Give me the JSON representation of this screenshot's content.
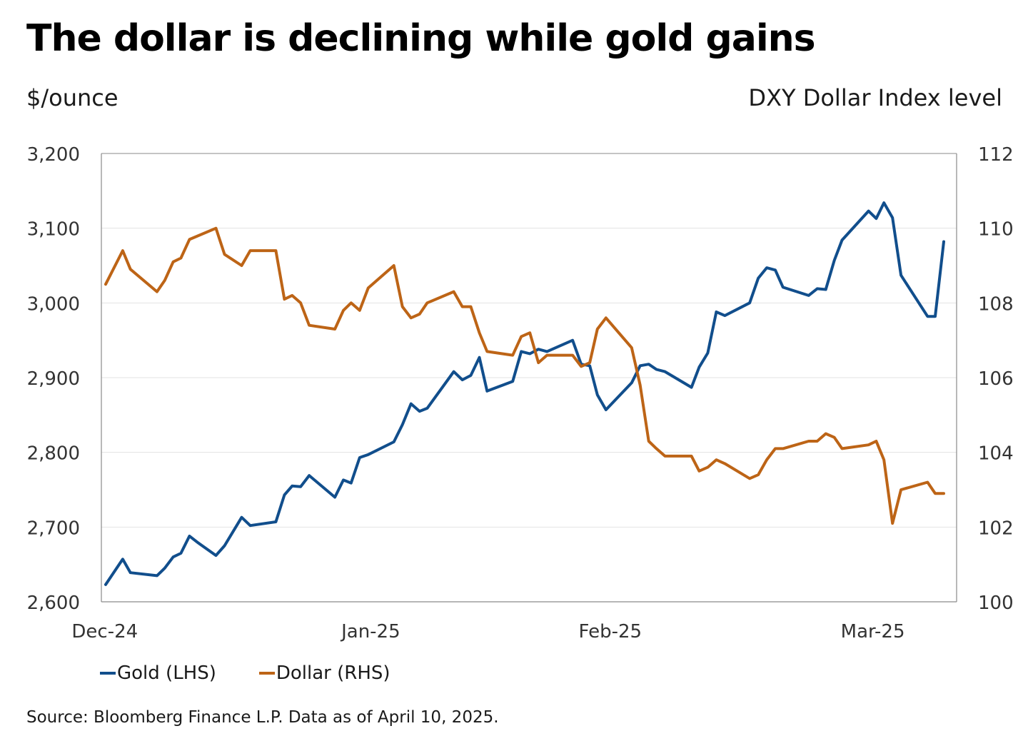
{
  "title": "The dollar is declining while gold gains",
  "left_unit": "$/ounce",
  "right_unit": "DXY Dollar Index level",
  "source": "Source: Bloomberg Finance L.P. Data as of April 10, 2025.",
  "colors": {
    "gold": "#114e8c",
    "dollar": "#bd6416",
    "grid": "#e3e3e3",
    "axis": "#8a8a8a"
  },
  "chart_data": {
    "type": "line",
    "x_range": [
      0,
      100
    ],
    "x_ticks": [
      {
        "label": "Dec-24",
        "x": 0.4
      },
      {
        "label": "Jan-25",
        "x": 31.5
      },
      {
        "label": "Feb-25",
        "x": 59.5
      },
      {
        "label": "Mar-25",
        "x": 90.2
      }
    ],
    "y_left": {
      "min": 2600,
      "max": 3200,
      "ticks": [
        "2,600",
        "2,700",
        "2,800",
        "2,900",
        "3,000",
        "3,100",
        "3,200"
      ]
    },
    "y_right": {
      "min": 100,
      "max": 112,
      "ticks": [
        "100",
        "102",
        "104",
        "106",
        "108",
        "110",
        "112"
      ]
    },
    "series": [
      {
        "name": "Gold (LHS)",
        "axis": "left",
        "color": "#114e8c",
        "points": [
          [
            0.5,
            2623
          ],
          [
            2.5,
            2657
          ],
          [
            3.4,
            2639
          ],
          [
            6.5,
            2635
          ],
          [
            7.4,
            2645
          ],
          [
            8.4,
            2660
          ],
          [
            9.3,
            2665
          ],
          [
            10.3,
            2688
          ],
          [
            11.3,
            2679
          ],
          [
            13.4,
            2662
          ],
          [
            14.4,
            2675
          ],
          [
            16.4,
            2713
          ],
          [
            17.4,
            2702
          ],
          [
            20.4,
            2707
          ],
          [
            21.4,
            2743
          ],
          [
            22.3,
            2755
          ],
          [
            23.3,
            2754
          ],
          [
            24.3,
            2769
          ],
          [
            27.3,
            2740
          ],
          [
            28.3,
            2763
          ],
          [
            29.2,
            2759
          ],
          [
            30.2,
            2793
          ],
          [
            31.2,
            2797
          ],
          [
            34.2,
            2814
          ],
          [
            35.2,
            2837
          ],
          [
            36.2,
            2865
          ],
          [
            37.2,
            2855
          ],
          [
            38.1,
            2859
          ],
          [
            41.2,
            2908
          ],
          [
            42.2,
            2897
          ],
          [
            43.2,
            2903
          ],
          [
            44.2,
            2927
          ],
          [
            45.1,
            2882
          ],
          [
            48.1,
            2895
          ],
          [
            49.1,
            2935
          ],
          [
            50.1,
            2932
          ],
          [
            51.1,
            2938
          ],
          [
            52.1,
            2935
          ],
          [
            55.1,
            2950
          ],
          [
            56.1,
            2918
          ],
          [
            57.1,
            2916
          ],
          [
            58.0,
            2877
          ],
          [
            59.0,
            2857
          ],
          [
            62.0,
            2893
          ],
          [
            63.0,
            2916
          ],
          [
            64.0,
            2918
          ],
          [
            64.9,
            2911
          ],
          [
            65.9,
            2908
          ],
          [
            69.0,
            2887
          ],
          [
            69.9,
            2914
          ],
          [
            70.9,
            2933
          ],
          [
            71.9,
            2988
          ],
          [
            72.9,
            2983
          ],
          [
            75.8,
            3000
          ],
          [
            76.8,
            3033
          ],
          [
            77.8,
            3047
          ],
          [
            78.8,
            3044
          ],
          [
            79.7,
            3021
          ],
          [
            82.7,
            3010
          ],
          [
            83.7,
            3019
          ],
          [
            84.7,
            3018
          ],
          [
            85.7,
            3057
          ],
          [
            86.6,
            3084
          ],
          [
            89.7,
            3123
          ],
          [
            90.6,
            3113
          ],
          [
            91.5,
            3134
          ],
          [
            92.5,
            3114
          ],
          [
            93.5,
            3037
          ],
          [
            96.6,
            2982
          ],
          [
            97.5,
            2982
          ],
          [
            98.5,
            3082
          ]
        ]
      },
      {
        "name": "Dollar (RHS)",
        "axis": "right",
        "color": "#bd6416",
        "points": [
          [
            0.5,
            108.5
          ],
          [
            2.5,
            109.4
          ],
          [
            3.4,
            108.9
          ],
          [
            6.5,
            108.3
          ],
          [
            7.4,
            108.6
          ],
          [
            8.4,
            109.1
          ],
          [
            9.3,
            109.2
          ],
          [
            10.3,
            109.7
          ],
          [
            13.4,
            110.0
          ],
          [
            14.4,
            109.3
          ],
          [
            16.4,
            109.0
          ],
          [
            17.4,
            109.4
          ],
          [
            20.4,
            109.4
          ],
          [
            21.4,
            108.1
          ],
          [
            22.3,
            108.2
          ],
          [
            23.3,
            108.0
          ],
          [
            24.3,
            107.4
          ],
          [
            27.3,
            107.3
          ],
          [
            28.3,
            107.8
          ],
          [
            29.2,
            108.0
          ],
          [
            30.2,
            107.8
          ],
          [
            31.2,
            108.4
          ],
          [
            34.2,
            109.0
          ],
          [
            35.2,
            107.9
          ],
          [
            36.2,
            107.6
          ],
          [
            37.2,
            107.7
          ],
          [
            38.1,
            108.0
          ],
          [
            41.2,
            108.3
          ],
          [
            42.2,
            107.9
          ],
          [
            43.2,
            107.9
          ],
          [
            44.2,
            107.2
          ],
          [
            45.1,
            106.7
          ],
          [
            48.1,
            106.6
          ],
          [
            49.1,
            107.1
          ],
          [
            50.1,
            107.2
          ],
          [
            51.1,
            106.4
          ],
          [
            52.1,
            106.6
          ],
          [
            55.1,
            106.6
          ],
          [
            56.1,
            106.3
          ],
          [
            57.1,
            106.4
          ],
          [
            58.0,
            107.3
          ],
          [
            59.0,
            107.6
          ],
          [
            62.0,
            106.8
          ],
          [
            63.0,
            105.8
          ],
          [
            64.0,
            104.3
          ],
          [
            64.9,
            104.1
          ],
          [
            65.9,
            103.9
          ],
          [
            69.0,
            103.9
          ],
          [
            69.9,
            103.5
          ],
          [
            70.9,
            103.6
          ],
          [
            71.9,
            103.8
          ],
          [
            72.9,
            103.7
          ],
          [
            75.8,
            103.3
          ],
          [
            76.8,
            103.4
          ],
          [
            77.8,
            103.8
          ],
          [
            78.8,
            104.1
          ],
          [
            79.7,
            104.1
          ],
          [
            82.7,
            104.3
          ],
          [
            83.7,
            104.3
          ],
          [
            84.7,
            104.5
          ],
          [
            85.7,
            104.4
          ],
          [
            86.6,
            104.1
          ],
          [
            89.7,
            104.2
          ],
          [
            90.6,
            104.3
          ],
          [
            91.5,
            103.8
          ],
          [
            92.5,
            102.1
          ],
          [
            93.5,
            103.0
          ],
          [
            96.6,
            103.2
          ],
          [
            97.5,
            102.9
          ],
          [
            98.5,
            102.9
          ]
        ]
      }
    ],
    "grid": true,
    "legend_position": "bottom-left"
  }
}
